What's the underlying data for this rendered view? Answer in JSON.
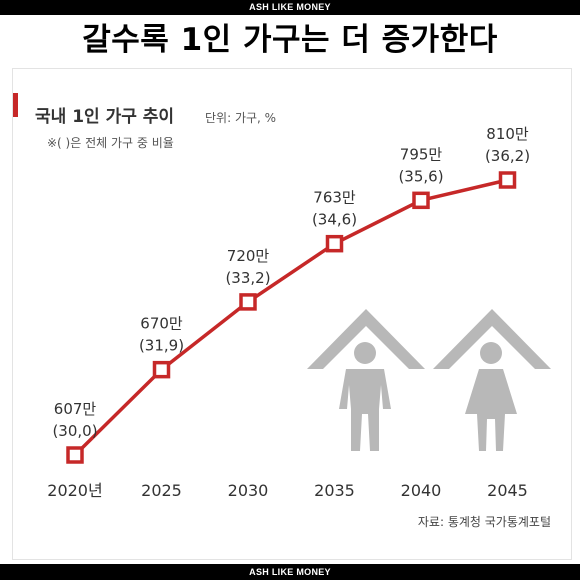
{
  "brand_top": "ASH LIKE MONEY",
  "headline": "갈수록 1인 가구는 더 증가한다",
  "brand_bottom": "ASH LIKE MONEY",
  "colors": {
    "accent": "#c62828",
    "text": "#333333",
    "icon": "#b8b8b8"
  },
  "icons": [
    "house-man-icon",
    "house-woman-icon"
  ],
  "chart_data": {
    "type": "line",
    "title": "국내 1인 가구 추이",
    "unit_label": "단위: 가구, %",
    "note": "※( )은 전체 가구 중 비율",
    "source": "자료: 통계청 국가통계포털",
    "categories": [
      "2020년",
      "2025",
      "2030",
      "2035",
      "2040",
      "2045"
    ],
    "series": [
      {
        "values": [
          607,
          670,
          720,
          763,
          795,
          810
        ]
      },
      {
        "values": [
          30.0,
          31.9,
          33.2,
          34.6,
          35.6,
          36.2
        ]
      }
    ],
    "value_labels": [
      "607만",
      "670만",
      "720만",
      "763만",
      "795만",
      "810만"
    ],
    "ratio_labels": [
      "(30,0)",
      "(31,9)",
      "(33,2)",
      "(34,6)",
      "(35,6)",
      "(36,2)"
    ],
    "y_range": [
      607,
      810
    ],
    "grid": false,
    "legend": "none"
  }
}
